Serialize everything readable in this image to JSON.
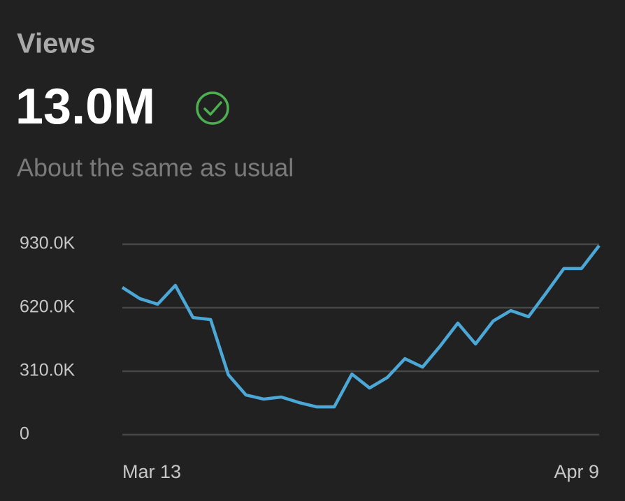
{
  "header": {
    "title": "Views",
    "total": "13.0M",
    "note": "About the same as usual"
  },
  "chart_data": {
    "type": "line",
    "categories": [
      "Mar 13",
      null,
      null,
      null,
      null,
      null,
      null,
      null,
      null,
      null,
      null,
      null,
      null,
      null,
      null,
      null,
      null,
      null,
      null,
      null,
      null,
      null,
      null,
      null,
      null,
      null,
      null,
      "Apr 9"
    ],
    "series": [
      {
        "name": "Views",
        "color": "#4ba8d6",
        "values": [
          719000,
          664000,
          637000,
          729000,
          572000,
          562000,
          293000,
          194000,
          174000,
          184000,
          157000,
          136000,
          136000,
          296000,
          228000,
          279000,
          371000,
          330000,
          433000,
          545000,
          443000,
          555000,
          606000,
          576000,
          692000,
          811000,
          811000,
          923000
        ]
      }
    ],
    "ylim": [
      0,
      930000
    ],
    "yticks": [
      0,
      {
        "value": 310000,
        "label": "310.0K"
      },
      {
        "value": 620000,
        "label": "620.0K"
      },
      {
        "value": 930000,
        "label": "930.0K"
      }
    ],
    "grid": true
  }
}
